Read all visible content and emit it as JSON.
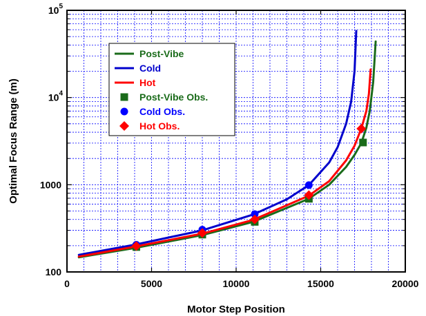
{
  "chart_data": {
    "type": "line",
    "xlabel": "Motor Step Position",
    "ylabel": "Optimal Focus Range (m)",
    "xlim": [
      0,
      20000
    ],
    "ylim": [
      100,
      100000
    ],
    "yscale": "log",
    "grid": true,
    "legend_position": "top-left",
    "x_ticks": [
      "0",
      "5000",
      "10000",
      "15000",
      "20000"
    ],
    "y_ticks": [
      {
        "value": 100,
        "base": "100",
        "exp": ""
      },
      {
        "value": 1000,
        "base": "1000",
        "exp": ""
      },
      {
        "value": 10000,
        "base": "10",
        "exp": "4"
      },
      {
        "value": 100000,
        "base": "10",
        "exp": "5"
      }
    ],
    "series": [
      {
        "name": "Post-Vibe",
        "kind": "line",
        "color": "#1a6b1a",
        "x": [
          700,
          4000,
          8000,
          11000,
          14300,
          15500,
          16500,
          17000,
          17400,
          17700,
          17900,
          18100,
          18250
        ],
        "y": [
          147,
          188,
          265,
          375,
          690,
          1000,
          1600,
          2200,
          3000,
          4500,
          7000,
          15000,
          44000
        ]
      },
      {
        "name": "Cold",
        "kind": "line",
        "color": "#0000cc",
        "x": [
          700,
          4000,
          8000,
          11000,
          13000,
          14300,
          15500,
          16000,
          16500,
          16800,
          17000,
          17100
        ],
        "y": [
          157,
          205,
          300,
          455,
          680,
          990,
          1800,
          2700,
          5000,
          9000,
          20000,
          58000
        ]
      },
      {
        "name": "Hot",
        "kind": "line",
        "color": "#ff0000",
        "x": [
          700,
          4000,
          8000,
          11000,
          14300,
          15500,
          16500,
          17000,
          17400,
          17700,
          17850,
          17950
        ],
        "y": [
          150,
          195,
          275,
          395,
          750,
          1100,
          1900,
          2800,
          4400,
          7000,
          11000,
          21000
        ]
      },
      {
        "name": "Post-Vibe Obs.",
        "kind": "marker",
        "marker": "square",
        "color": "#1a6b1a",
        "x": [
          4100,
          8000,
          11100,
          14300,
          17500
        ],
        "y": [
          193,
          268,
          375,
          690,
          3050
        ]
      },
      {
        "name": "Cold Obs.",
        "kind": "marker",
        "marker": "circle",
        "color": "#0000ff",
        "x": [
          4100,
          8000,
          11100,
          14300
        ],
        "y": [
          205,
          305,
          460,
          990
        ]
      },
      {
        "name": "Hot Obs.",
        "kind": "marker",
        "marker": "diamond",
        "color": "#ff0000",
        "x": [
          4100,
          8000,
          11100,
          14300,
          17400
        ],
        "y": [
          198,
          280,
          400,
          760,
          4400
        ]
      }
    ]
  }
}
